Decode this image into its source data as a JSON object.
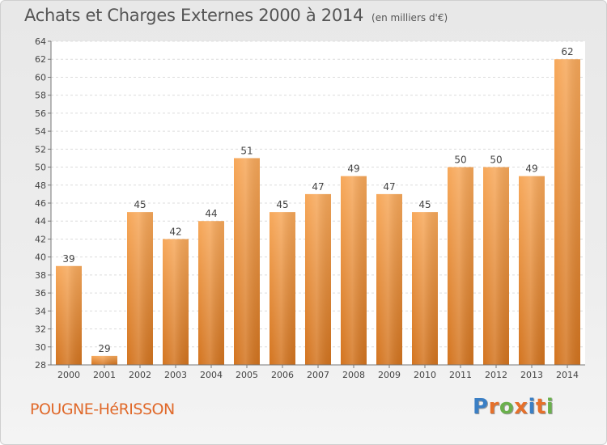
{
  "header": {
    "title": "Achats et Charges Externes 2000 à 2014",
    "unit": "(en milliers d'€)"
  },
  "footer": {
    "town": "POUGNE-HéRISSON",
    "brand": "Proxiti"
  },
  "colors": {
    "bar_light": "#f7a85a",
    "bar_dark": "#d3741f",
    "town_text": "#e0692a",
    "brand_letters": [
      "#3b7fc4",
      "#e6702a",
      "#6ab04c",
      "#e6702a",
      "#3b7fc4",
      "#e6702a",
      "#6ab04c"
    ]
  },
  "chart_data": {
    "type": "bar",
    "title": "Achats et Charges Externes 2000 à 2014",
    "subtitle": "(en milliers d'€)",
    "xlabel": "",
    "ylabel": "",
    "categories": [
      "2000",
      "2001",
      "2002",
      "2003",
      "2004",
      "2005",
      "2006",
      "2007",
      "2008",
      "2009",
      "2010",
      "2011",
      "2012",
      "2013",
      "2014"
    ],
    "values": [
      39,
      29,
      45,
      42,
      44,
      51,
      45,
      47,
      49,
      47,
      45,
      50,
      50,
      49,
      62
    ],
    "data_labels": [
      "39",
      "29",
      "45",
      "42",
      "44",
      "51",
      "45",
      "47",
      "49",
      "47",
      "45",
      "50",
      "50",
      "49",
      "62"
    ],
    "ylim": [
      28,
      64
    ],
    "yticks": [
      28,
      30,
      32,
      34,
      36,
      38,
      40,
      42,
      44,
      46,
      48,
      50,
      52,
      54,
      56,
      58,
      60,
      62,
      64
    ],
    "grid": true,
    "legend": "none"
  }
}
